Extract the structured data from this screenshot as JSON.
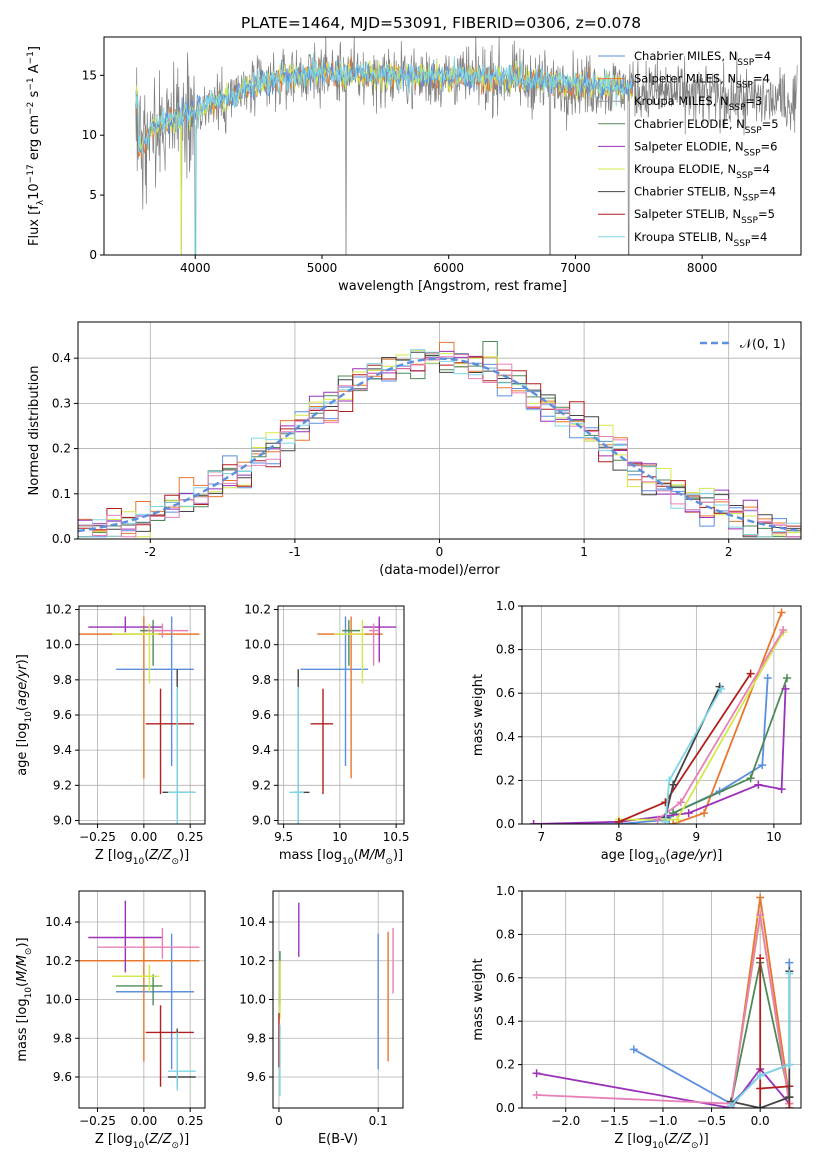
{
  "figure": {
    "title": "PLATE=1464, MJD=53091, FIBERID=0306, z=0.078"
  },
  "series_styles": [
    {
      "name": "Chabrier MILES",
      "nssp": "4",
      "color": "#5b8fe0"
    },
    {
      "name": "Salpeter MILES",
      "nssp": "4",
      "color": "#e8772e"
    },
    {
      "name": "Kroupa MILES",
      "nssp": "3",
      "color": "#999999"
    },
    {
      "name": "Chabrier ELODIE",
      "nssp": "5",
      "color": "#4e8a57"
    },
    {
      "name": "Salpeter ELODIE",
      "nssp": "6",
      "color": "#9a31b8"
    },
    {
      "name": "Kroupa ELODIE",
      "nssp": "4",
      "color": "#d4e84a"
    },
    {
      "name": "Chabrier STELIB",
      "nssp": "4",
      "color": "#444444"
    },
    {
      "name": "Salpeter STELIB",
      "nssp": "5",
      "color": "#b11f1f"
    },
    {
      "name": "Kroupa STELIB",
      "nssp": "4",
      "color": "#7ed6e6"
    },
    {
      "name": "",
      "nssp": "",
      "color": "#e880b8"
    }
  ],
  "chart_data": [
    {
      "id": "spectrum",
      "type": "line",
      "title": "PLATE=1464, MJD=53091, FIBERID=0306, z=0.078",
      "xlabel": "wavelength [Angstrom, rest frame]",
      "ylabel": "Flux [f_λ 10^-17 erg cm^-2 s^-1 A^-1]",
      "xlim": [
        3280,
        8780
      ],
      "ylim": [
        0,
        18.2
      ],
      "xticks": [
        4000,
        5000,
        6000,
        7000,
        8000
      ],
      "yticks": [
        0,
        5,
        10,
        15
      ],
      "legend_loc": "right",
      "legend": [
        "Chabrier MILES, N_SSP=4",
        "Salpeter MILES, N_SSP=4",
        "Kroupa MILES, N_SSP=3",
        "Chabrier ELODIE, N_SSP=5",
        "Salpeter ELODIE, N_SSP=6",
        "Kroupa ELODIE, N_SSP=4",
        "Chabrier STELIB, N_SSP=4",
        "Salpeter STELIB, N_SSP=5",
        "Kroupa STELIB, N_SSP=4"
      ],
      "continuum": [
        [
          3550,
          8.5
        ],
        [
          3650,
          10.5
        ],
        [
          3800,
          11.2
        ],
        [
          3950,
          11.8
        ],
        [
          4050,
          12.2
        ],
        [
          4200,
          12.8
        ],
        [
          4400,
          13.8
        ],
        [
          4700,
          14.8
        ],
        [
          5000,
          15.2
        ],
        [
          5300,
          15.0
        ],
        [
          5600,
          14.9
        ],
        [
          6000,
          14.8
        ],
        [
          6400,
          14.7
        ],
        [
          6700,
          14.5
        ],
        [
          7000,
          14.2
        ],
        [
          7300,
          14.0
        ],
        [
          7600,
          13.7
        ],
        [
          8000,
          13.3
        ],
        [
          8400,
          13.0
        ],
        [
          8750,
          12.8
        ]
      ],
      "data_range": [
        3530,
        8750
      ],
      "model_range": [
        3530,
        7450
      ],
      "dropouts": [
        3890,
        4000,
        5190,
        6800,
        7420
      ]
    },
    {
      "id": "residuals",
      "type": "histogram",
      "xlabel": "(data-model)/error",
      "ylabel": "Normed distribution",
      "xlim": [
        -2.5,
        2.5
      ],
      "ylim": [
        0,
        0.48
      ],
      "xticks": [
        -2,
        -1,
        0,
        1,
        2
      ],
      "yticks": [
        0.0,
        0.1,
        0.2,
        0.3,
        0.4
      ],
      "bin_width": 0.1,
      "reference": "N(0,1)",
      "legend_label": "𝒩(0, 1)",
      "legend_loc": "top-right"
    },
    {
      "id": "age_vs_Z",
      "type": "errorbar",
      "xlabel": "Z [log10(Z/Z☉)]",
      "ylabel": "age [log10(age/yr)]",
      "xlim": [
        -0.35,
        0.33
      ],
      "ylim": [
        8.98,
        10.22
      ],
      "xticks": [
        -0.25,
        0.0,
        0.25
      ],
      "xticklabels": [
        "−0.25",
        "0.00",
        "0.25"
      ],
      "yticks": [
        9.0,
        9.2,
        9.4,
        9.6,
        9.8,
        10.0,
        10.2
      ],
      "points": [
        {
          "x": 0.15,
          "xerr": [
            0.3,
            0.12
          ],
          "y": 9.86,
          "yerr": [
            0.55,
            0.3
          ],
          "c": 0
        },
        {
          "x": 0.0,
          "xerr": [
            0.4,
            0.3
          ],
          "y": 10.06,
          "yerr": [
            0.82,
            0.1
          ],
          "c": 1
        },
        {
          "x": 0.05,
          "xerr": [
            0.07,
            0.04
          ],
          "y": 10.08,
          "yerr": [
            0.2,
            0.06
          ],
          "c": 3
        },
        {
          "x": -0.1,
          "xerr": [
            0.2,
            0.2
          ],
          "y": 10.1,
          "yerr": [
            0.03,
            0.06
          ],
          "c": 4
        },
        {
          "x": 0.03,
          "xerr": [
            0.2,
            0.05
          ],
          "y": 10.06,
          "yerr": [
            0.28,
            0.06
          ],
          "c": 5
        },
        {
          "x": 0.1,
          "xerr": [
            0.08,
            0.14
          ],
          "y": 10.08,
          "yerr": [
            0.04,
            0.04
          ],
          "c": 9
        },
        {
          "x": 0.09,
          "xerr": [
            0.08,
            0.18
          ],
          "y": 9.55,
          "yerr": [
            0.4,
            0.2
          ],
          "c": 7
        },
        {
          "x": 0.18,
          "xerr": [
            0.08,
            0.09
          ],
          "y": 9.16,
          "yerr": [
            0.15,
            0.7
          ],
          "c": 6
        },
        {
          "x": 0.18,
          "xerr": [
            0.05,
            0.1
          ],
          "y": 9.16,
          "yerr": [
            0.2,
            0.6
          ],
          "c": 8
        }
      ]
    },
    {
      "id": "age_vs_mass",
      "type": "errorbar",
      "xlabel": "mass [log10(M/M☉)]",
      "ylabel": "",
      "xlim": [
        9.45,
        10.57
      ],
      "ylim": [
        8.98,
        10.22
      ],
      "xticks": [
        9.5,
        10.0,
        10.5
      ],
      "yticks": [
        9.0,
        9.2,
        9.4,
        9.6,
        9.8,
        10.0,
        10.2
      ],
      "points": [
        {
          "x": 10.05,
          "xerr": [
            0.4,
            0.2
          ],
          "y": 9.86,
          "yerr": [
            0.55,
            0.3
          ],
          "c": 0
        },
        {
          "x": 10.1,
          "xerr": [
            0.3,
            0.28
          ],
          "y": 10.06,
          "yerr": [
            0.82,
            0.1
          ],
          "c": 1
        },
        {
          "x": 10.08,
          "xerr": [
            0.06,
            0.1
          ],
          "y": 10.08,
          "yerr": [
            0.2,
            0.06
          ],
          "c": 3
        },
        {
          "x": 10.35,
          "xerr": [
            0.15,
            0.15
          ],
          "y": 10.1,
          "yerr": [
            0.2,
            0.06
          ],
          "c": 4
        },
        {
          "x": 10.2,
          "xerr": [
            0.25,
            0.02
          ],
          "y": 10.06,
          "yerr": [
            0.28,
            0.08
          ],
          "c": 5
        },
        {
          "x": 10.3,
          "xerr": [
            0.04,
            0.05
          ],
          "y": 10.08,
          "yerr": [
            0.2,
            0.04
          ],
          "c": 9
        },
        {
          "x": 9.85,
          "xerr": [
            0.11,
            0.09
          ],
          "y": 9.55,
          "yerr": [
            0.4,
            0.2
          ],
          "c": 7
        },
        {
          "x": 9.63,
          "xerr": [
            0.04,
            0.1
          ],
          "y": 9.16,
          "yerr": [
            0.2,
            0.7
          ],
          "c": 6
        },
        {
          "x": 9.63,
          "xerr": [
            0.08,
            0.05
          ],
          "y": 9.16,
          "yerr": [
            0.25,
            0.6
          ],
          "c": 8
        }
      ]
    },
    {
      "id": "weight_vs_age",
      "type": "line",
      "xlabel": "age [log10(age/yr)]",
      "ylabel": "mass weight",
      "xlim": [
        6.75,
        10.35
      ],
      "ylim": [
        0,
        1.0
      ],
      "xticks": [
        7,
        8,
        9,
        10
      ],
      "yticks": [
        0.0,
        0.2,
        0.4,
        0.6,
        0.8,
        1.0
      ],
      "series": [
        {
          "c": 0,
          "x": [
            6.9,
            8.0,
            8.65,
            8.7,
            9.3,
            9.85,
            9.92
          ],
          "y": [
            0.0,
            0.0,
            0.02,
            0.05,
            0.15,
            0.27,
            0.67
          ]
        },
        {
          "c": 1,
          "x": [
            8.7,
            9.1,
            10.1
          ],
          "y": [
            0.0,
            0.05,
            0.97
          ]
        },
        {
          "c": 3,
          "x": [
            8.7,
            9.7,
            10.17
          ],
          "y": [
            0.05,
            0.21,
            0.67
          ]
        },
        {
          "c": 4,
          "x": [
            6.9,
            8.0,
            8.9,
            9.8,
            10.1,
            10.15
          ],
          "y": [
            0.0,
            0.01,
            0.05,
            0.18,
            0.16,
            0.62
          ]
        },
        {
          "c": 5,
          "x": [
            8.0,
            8.75,
            10.12
          ],
          "y": [
            0.02,
            0.02,
            0.88
          ]
        },
        {
          "c": 9,
          "x": [
            8.5,
            8.8,
            10.12
          ],
          "y": [
            0.02,
            0.1,
            0.89
          ]
        },
        {
          "c": 7,
          "x": [
            8.0,
            8.6,
            9.7
          ],
          "y": [
            0.01,
            0.1,
            0.69
          ]
        },
        {
          "c": 6,
          "x": [
            8.6,
            8.7,
            9.3
          ],
          "y": [
            0.03,
            0.18,
            0.63
          ]
        },
        {
          "c": 8,
          "x": [
            8.6,
            8.65,
            9.32
          ],
          "y": [
            0.01,
            0.2,
            0.62
          ]
        }
      ]
    },
    {
      "id": "mass_vs_Z",
      "type": "errorbar",
      "xlabel": "Z [log10(Z/Z☉)]",
      "ylabel": "mass [log10(M/M☉)]",
      "xlim": [
        -0.35,
        0.33
      ],
      "ylim": [
        9.44,
        10.56
      ],
      "xticks": [
        -0.25,
        0.0,
        0.25
      ],
      "xticklabels": [
        "−0.25",
        "0.00",
        "0.25"
      ],
      "yticks": [
        9.6,
        9.8,
        10.0,
        10.2,
        10.4
      ],
      "points": [
        {
          "x": 0.15,
          "xerr": [
            0.3,
            0.12
          ],
          "y": 10.04,
          "yerr": [
            0.4,
            0.3
          ],
          "c": 0
        },
        {
          "x": 0.0,
          "xerr": [
            0.4,
            0.3
          ],
          "y": 10.2,
          "yerr": [
            0.52,
            0.12
          ],
          "c": 1
        },
        {
          "x": 0.05,
          "xerr": [
            0.2,
            0.05
          ],
          "y": 10.07,
          "yerr": [
            0.1,
            0.06
          ],
          "c": 3
        },
        {
          "x": -0.1,
          "xerr": [
            0.2,
            0.2
          ],
          "y": 10.32,
          "yerr": [
            0.18,
            0.19
          ],
          "c": 4
        },
        {
          "x": 0.03,
          "xerr": [
            0.2,
            0.05
          ],
          "y": 10.12,
          "yerr": [
            0.08,
            0.06
          ],
          "c": 5
        },
        {
          "x": 0.1,
          "xerr": [
            0.35,
            0.2
          ],
          "y": 10.27,
          "yerr": [
            0.06,
            0.1
          ],
          "c": 9
        },
        {
          "x": 0.09,
          "xerr": [
            0.08,
            0.18
          ],
          "y": 9.83,
          "yerr": [
            0.28,
            0.14
          ],
          "c": 7
        },
        {
          "x": 0.18,
          "xerr": [
            0.05,
            0.1
          ],
          "y": 9.6,
          "yerr": [
            0.05,
            0.25
          ],
          "c": 6
        },
        {
          "x": 0.18,
          "xerr": [
            0.05,
            0.1
          ],
          "y": 9.63,
          "yerr": [
            0.1,
            0.2
          ],
          "c": 8
        }
      ]
    },
    {
      "id": "mass_vs_EBV",
      "type": "errorbar",
      "xlabel": "E(B-V)",
      "ylabel": "",
      "xlim": [
        -0.006,
        0.125
      ],
      "ylim": [
        9.44,
        10.56
      ],
      "xticks": [
        0.0,
        0.1
      ],
      "yticks": [
        9.6,
        9.8,
        10.0,
        10.2,
        10.4
      ],
      "points": [
        {
          "x": 0.1,
          "y": 10.04,
          "yerr": [
            0.4,
            0.3
          ],
          "c": 0
        },
        {
          "x": 0.11,
          "y": 10.2,
          "yerr": [
            0.52,
            0.15
          ],
          "c": 1
        },
        {
          "x": 0.001,
          "y": 10.07,
          "yerr": [
            0.1,
            0.18
          ],
          "c": 3
        },
        {
          "x": 0.02,
          "y": 10.32,
          "yerr": [
            0.1,
            0.18
          ],
          "c": 4
        },
        {
          "x": 0.001,
          "y": 10.1,
          "yerr": [
            0.2,
            0.1
          ],
          "c": 5
        },
        {
          "x": 0.115,
          "y": 10.2,
          "yerr": [
            0.17,
            0.17
          ],
          "c": 9
        },
        {
          "x": 0.0,
          "y": 9.85,
          "yerr": [
            0.2,
            0.08
          ],
          "c": 7
        },
        {
          "x": 0.001,
          "y": 9.75,
          "yerr": [
            0.25,
            0.12
          ],
          "c": 8
        }
      ]
    },
    {
      "id": "weight_vs_Z",
      "type": "line",
      "xlabel": "Z [log10(Z/Z☉)]",
      "ylabel": "mass weight",
      "xlim": [
        -2.45,
        0.42
      ],
      "ylim": [
        0,
        1.0
      ],
      "xticks": [
        -2.0,
        -1.5,
        -1.0,
        -0.5,
        0.0
      ],
      "xticklabels": [
        "−2.0",
        "−1.5",
        "−1.0",
        "−0.5",
        "0.0"
      ],
      "yticks": [
        0.0,
        0.2,
        0.4,
        0.6,
        0.8,
        1.0
      ],
      "series": [
        {
          "c": 0,
          "x": [
            -1.3,
            -0.3,
            0.0,
            0.3,
            0.3
          ],
          "y": [
            0.27,
            0.02,
            0.15,
            0.2,
            0.67
          ]
        },
        {
          "c": 1,
          "x": [
            -0.3,
            0.0,
            0.3
          ],
          "y": [
            0.0,
            0.97,
            0.05
          ]
        },
        {
          "c": 3,
          "x": [
            -0.3,
            0.0,
            0.3
          ],
          "y": [
            0.02,
            0.67,
            0.05
          ]
        },
        {
          "c": 4,
          "x": [
            -2.3,
            -0.3,
            0.0,
            0.3
          ],
          "y": [
            0.16,
            0.0,
            0.18,
            0.02
          ]
        },
        {
          "c": 5,
          "x": [
            -0.3,
            0.0,
            0.3
          ],
          "y": [
            0.02,
            0.88,
            0.02
          ]
        },
        {
          "c": 9,
          "x": [
            -2.3,
            -0.3,
            0.0,
            0.3
          ],
          "y": [
            0.06,
            0.02,
            0.89,
            0.02
          ]
        },
        {
          "c": 7,
          "x": [
            0.0,
            0.0,
            0.0,
            0.3,
            0.3
          ],
          "y": [
            0.0,
            0.69,
            0.09,
            0.1,
            0.0
          ]
        },
        {
          "c": 6,
          "x": [
            -0.3,
            0.0,
            0.3,
            0.3
          ],
          "y": [
            0.03,
            0.0,
            0.05,
            0.63
          ]
        },
        {
          "c": 8,
          "x": [
            -0.3,
            0.0,
            0.3,
            0.3
          ],
          "y": [
            0.01,
            0.15,
            0.2,
            0.62
          ]
        }
      ]
    }
  ]
}
